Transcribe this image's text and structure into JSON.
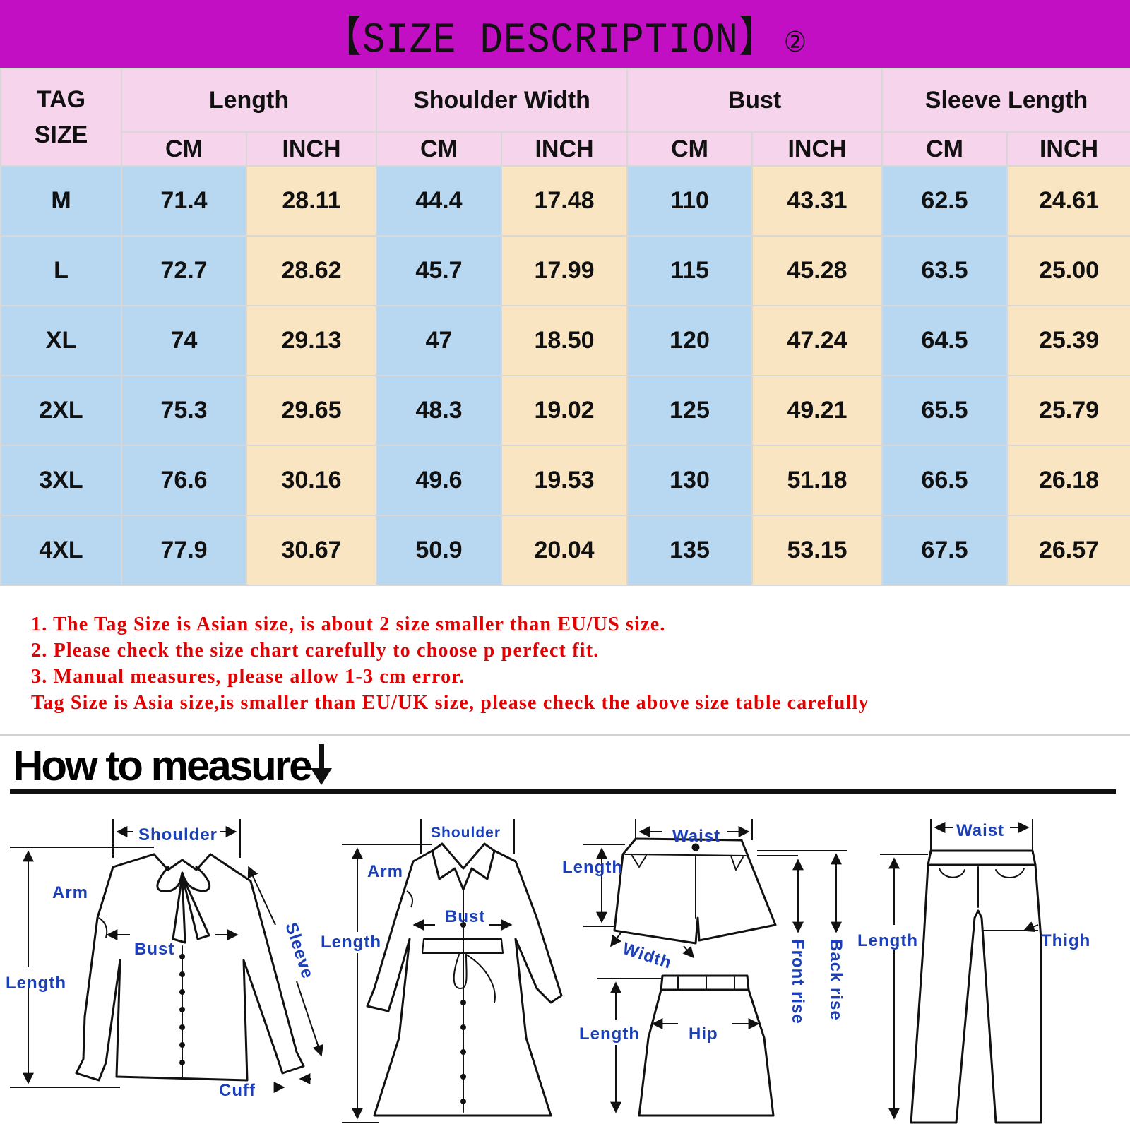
{
  "banner": {
    "title": "【SIZE DESCRIPTION】",
    "suffix": "②",
    "bg_color": "#c20fc4"
  },
  "size_table": {
    "tag_header": [
      "TAG",
      "SIZE"
    ],
    "groups": [
      "Length",
      "Shoulder Width",
      "Bust",
      "Sleeve Length"
    ],
    "units": [
      "CM",
      "INCH",
      "CM",
      "INCH",
      "CM",
      "INCH",
      "CM",
      "INCH"
    ],
    "rows": [
      {
        "size": "M",
        "values": [
          "71.4",
          "28.11",
          "44.4",
          "17.48",
          "110",
          "43.31",
          "62.5",
          "24.61"
        ]
      },
      {
        "size": "L",
        "values": [
          "72.7",
          "28.62",
          "45.7",
          "17.99",
          "115",
          "45.28",
          "63.5",
          "25.00"
        ]
      },
      {
        "size": "XL",
        "values": [
          "74",
          "29.13",
          "47",
          "18.50",
          "120",
          "47.24",
          "64.5",
          "25.39"
        ]
      },
      {
        "size": "2XL",
        "values": [
          "75.3",
          "29.65",
          "48.3",
          "19.02",
          "125",
          "49.21",
          "65.5",
          "25.79"
        ]
      },
      {
        "size": "3XL",
        "values": [
          "76.6",
          "30.16",
          "49.6",
          "19.53",
          "130",
          "51.18",
          "66.5",
          "26.18"
        ]
      },
      {
        "size": "4XL",
        "values": [
          "77.9",
          "30.67",
          "50.9",
          "20.04",
          "135",
          "53.15",
          "67.5",
          "26.57"
        ]
      }
    ],
    "colors": {
      "header": "#f5d4ec",
      "cm": "#b8d8f2",
      "inch": "#fae5c3"
    }
  },
  "notes": [
    "1. The Tag Size is Asian size, is about 2 size smaller than EU/US size.",
    "2. Please check the size chart carefully to choose p perfect fit.",
    "3. Manual measures, please allow 1-3 cm error.",
    "Tag Size is Asia size,is smaller than EU/UK size, please check the above size table carefully"
  ],
  "how_to_measure": {
    "title": "How to measure",
    "arrow_icon": "arrow-down-icon",
    "labels": {
      "shirt": {
        "shoulder": "Shoulder",
        "arm": "Arm",
        "bust": "Bust",
        "sleeve": "Sleeve",
        "length": "Length",
        "cuff": "Cuff"
      },
      "coat": {
        "shoulder": "Shoulder",
        "arm": "Arm",
        "bust": "Bust",
        "length": "Length"
      },
      "shorts": {
        "waist": "Waist",
        "length": "Length",
        "width": "Width",
        "front_rise": "Front rise",
        "back_rise": "Back rise"
      },
      "skirt": {
        "length": "Length",
        "hip": "Hip"
      },
      "pants": {
        "waist": "Waist",
        "length": "Length",
        "thigh": "Thigh"
      }
    },
    "label_color": "#1a3fb8"
  }
}
